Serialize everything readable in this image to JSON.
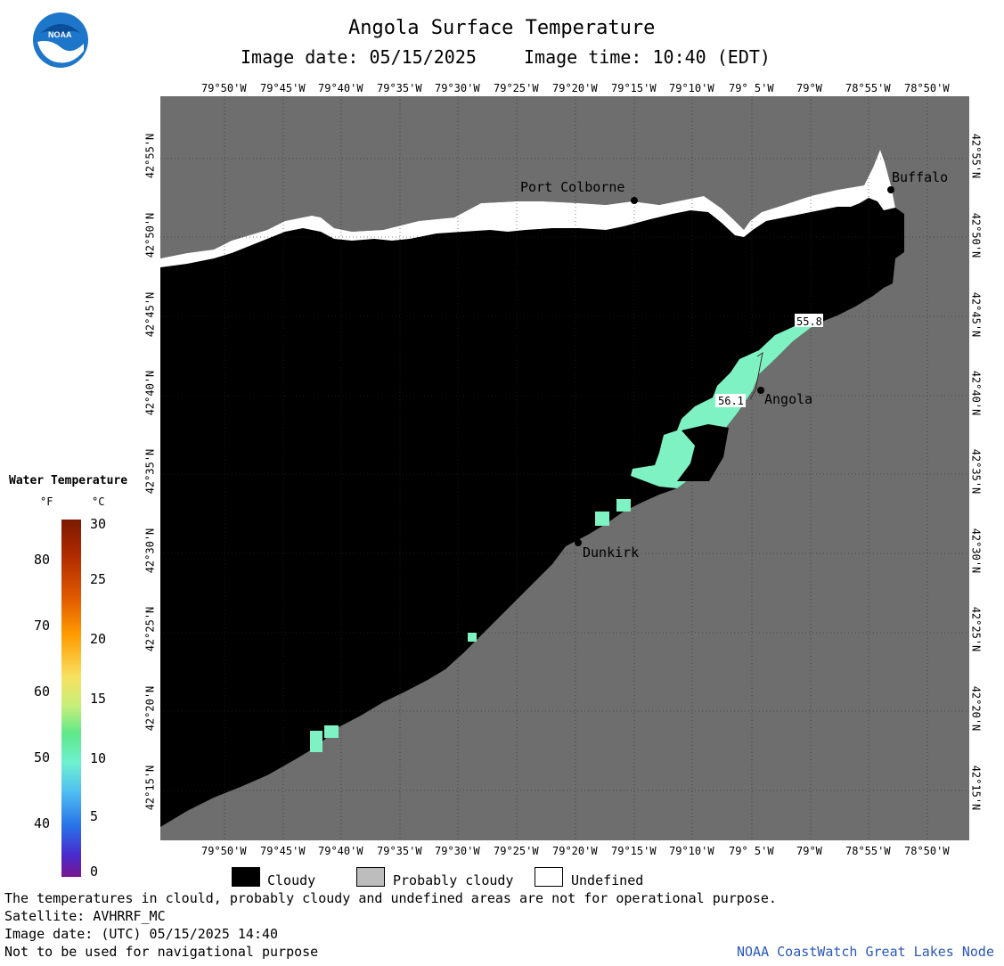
{
  "header": {
    "title": "Angola Surface Temperature",
    "image_date": "Image date: 05/15/2025",
    "image_time": "Image time: 10:40 (EDT)",
    "logo_text": "NOAA"
  },
  "axes": {
    "lon_labels": [
      "79°50'W",
      "79°45'W",
      "79°40'W",
      "79°35'W",
      "79°30'W",
      "79°25'W",
      "79°20'W",
      "79°15'W",
      "79°10'W",
      "79° 5'W",
      "79°W",
      "78°55'W",
      "78°50'W"
    ],
    "lat_labels": [
      "42°55'N",
      "42°50'N",
      "42°45'N",
      "42°40'N",
      "42°35'N",
      "42°30'N",
      "42°25'N",
      "42°20'N",
      "42°15'N"
    ]
  },
  "places": {
    "port_colborne": "Port Colborne",
    "buffalo": "Buffalo",
    "angola": "Angola",
    "dunkirk": "Dunkirk"
  },
  "readings": {
    "r1": "55.8",
    "r2": "56.1"
  },
  "colorbar": {
    "title": "Water Temperature",
    "unit_f": "°F",
    "unit_c": "°C",
    "f_labels": [
      "80",
      "70",
      "60",
      "50",
      "40"
    ],
    "c_labels": [
      "30",
      "25",
      "20",
      "15",
      "10",
      "5",
      "0"
    ]
  },
  "legend": {
    "cloudy": "Cloudy",
    "probably_cloudy": "Probably cloudy",
    "undefined": "Undefined"
  },
  "colors": {
    "land": "#6e6e6e",
    "cloudy": "#000000",
    "probably_cloudy": "#bdbdbd",
    "undefined": "#ffffff",
    "water_56f": "#7ff2c4"
  },
  "footer": {
    "note": "The temperatures in clould, probably cloudy and undefined areas are not for operational purpose.",
    "satellite": "Satellite: AVHRRF_MC",
    "utc_date": "Image date: (UTC) 05/15/2025  14:40",
    "nav": "Not to be used for navigational purpose",
    "credit": "NOAA CoastWatch Great Lakes Node"
  }
}
